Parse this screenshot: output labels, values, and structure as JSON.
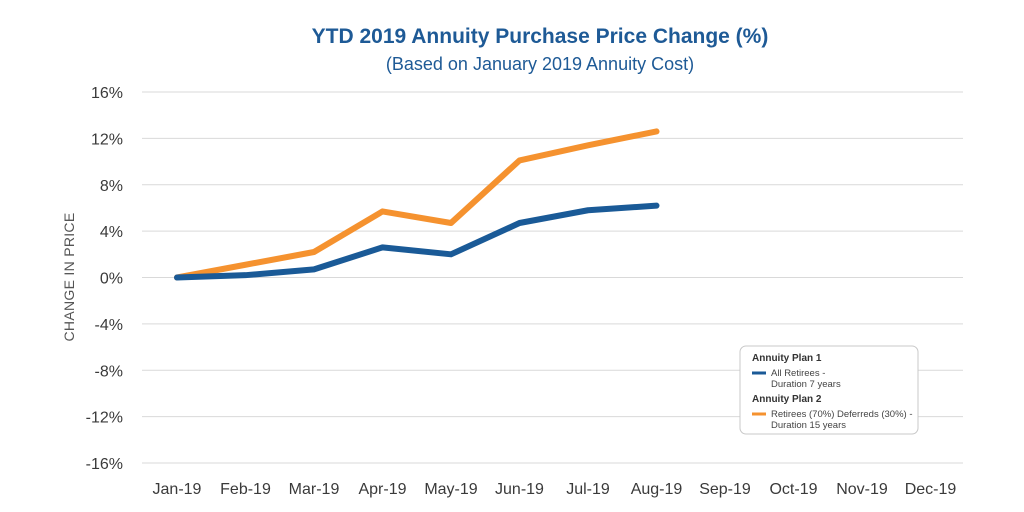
{
  "chart_data": {
    "type": "line",
    "title": "YTD 2019 Annuity Purchase Price Change (%)",
    "subtitle": "(Based on January 2019 Annuity Cost)",
    "xlabel": "",
    "ylabel": "CHANGE IN PRICE",
    "categories": [
      "Jan-19",
      "Feb-19",
      "Mar-19",
      "Apr-19",
      "May-19",
      "Jun-19",
      "Jul-19",
      "Aug-19",
      "Sep-19",
      "Oct-19",
      "Nov-19",
      "Dec-19"
    ],
    "yticks": [
      16,
      12,
      8,
      4,
      0,
      -4,
      -8,
      -12,
      -16
    ],
    "ytick_labels": [
      "16%",
      "12%",
      "8%",
      "4%",
      "0%",
      "-4%",
      "-8%",
      "-12%",
      "-16%"
    ],
    "ylim": [
      -16,
      16
    ],
    "grid": true,
    "series": [
      {
        "name": "Annuity Plan 1",
        "legend_lines": [
          "All Retirees -",
          "Duration 7 years"
        ],
        "color": "#1a5a97",
        "values": [
          0,
          0.2,
          0.7,
          2.6,
          2.0,
          4.7,
          5.8,
          6.2,
          null,
          null,
          null,
          null
        ]
      },
      {
        "name": "Annuity Plan 2",
        "legend_lines": [
          "Retirees (70%) Deferreds (30%) -",
          "Duration 15 years"
        ],
        "color": "#f5922f",
        "values": [
          0,
          1.1,
          2.2,
          5.7,
          4.7,
          10.1,
          11.4,
          12.6,
          null,
          null,
          null,
          null
        ]
      }
    ],
    "legend_position": "bottom-right"
  }
}
